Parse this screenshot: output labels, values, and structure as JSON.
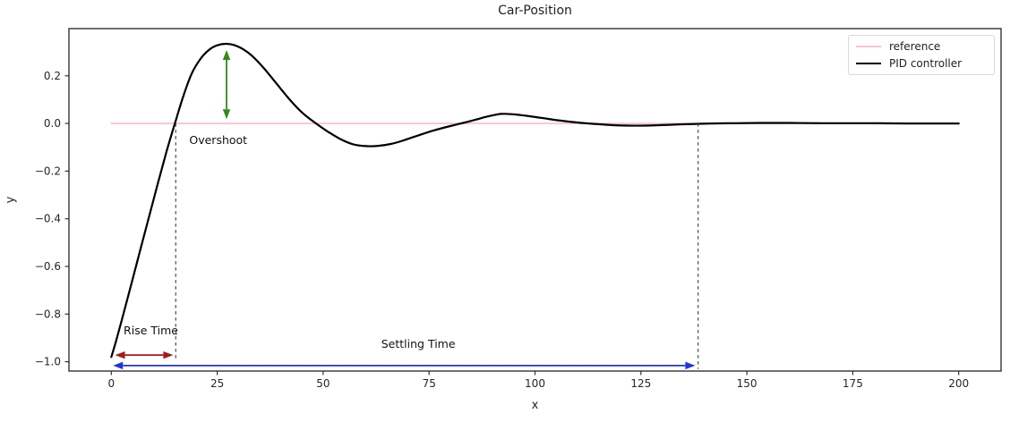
{
  "figure": {
    "title": "Car-Position",
    "xlabel": "x",
    "ylabel": "y",
    "background": "#ffffff",
    "spine_color": "#333333",
    "tick_label_color": "#262626"
  },
  "legend": {
    "position": "top-right",
    "entries": [
      {
        "label": "reference",
        "color": "#ffc0cb"
      },
      {
        "label": "PID controller",
        "color": "#000000"
      }
    ]
  },
  "chart_data": {
    "type": "line",
    "title": "Car-Position",
    "xlabel": "x",
    "ylabel": "y",
    "xlim": [
      -10,
      210
    ],
    "ylim": [
      -1.039,
      0.398
    ],
    "grid": false,
    "x_ticks": [
      0,
      25,
      50,
      75,
      100,
      125,
      150,
      175,
      200
    ],
    "x_tick_labels": [
      "0",
      "25",
      "50",
      "75",
      "100",
      "125",
      "150",
      "175",
      "200"
    ],
    "y_ticks": [
      0.2,
      0.0,
      -0.2,
      -0.4,
      -0.6,
      -0.8,
      -1.0
    ],
    "y_tick_labels": [
      "0.2",
      "0.0",
      "−0.2",
      "−0.4",
      "−0.6",
      "−0.8",
      "−1.0"
    ],
    "series": [
      {
        "name": "reference",
        "color": "#ffc0cb",
        "width": 1.8,
        "points": [
          [
            0,
            0
          ],
          [
            200,
            0
          ]
        ]
      },
      {
        "name": "PID controller",
        "color": "#000000",
        "width": 2.2,
        "points": [
          [
            0,
            -0.98
          ],
          [
            1,
            -0.92
          ],
          [
            3,
            -0.79
          ],
          [
            5,
            -0.655
          ],
          [
            7,
            -0.52
          ],
          [
            9,
            -0.385
          ],
          [
            11,
            -0.25
          ],
          [
            13,
            -0.12
          ],
          [
            15,
            0.0
          ],
          [
            17,
            0.115
          ],
          [
            19,
            0.21
          ],
          [
            21,
            0.27
          ],
          [
            23,
            0.308
          ],
          [
            25,
            0.328
          ],
          [
            27.5,
            0.334
          ],
          [
            30,
            0.322
          ],
          [
            33,
            0.287
          ],
          [
            36,
            0.232
          ],
          [
            39,
            0.167
          ],
          [
            42,
            0.102
          ],
          [
            45,
            0.046
          ],
          [
            48,
            0.004
          ],
          [
            51,
            -0.033
          ],
          [
            54,
            -0.065
          ],
          [
            57,
            -0.087
          ],
          [
            60,
            -0.095
          ],
          [
            63,
            -0.094
          ],
          [
            66,
            -0.086
          ],
          [
            69,
            -0.071
          ],
          [
            72,
            -0.053
          ],
          [
            76,
            -0.03
          ],
          [
            80,
            -0.011
          ],
          [
            83,
            0.002
          ],
          [
            86,
            0.016
          ],
          [
            89,
            0.03
          ],
          [
            92,
            0.04
          ],
          [
            95,
            0.038
          ],
          [
            98,
            0.032
          ],
          [
            102,
            0.022
          ],
          [
            106,
            0.012
          ],
          [
            110,
            0.004
          ],
          [
            114,
            -0.002
          ],
          [
            118,
            -0.007
          ],
          [
            122,
            -0.009
          ],
          [
            126,
            -0.009
          ],
          [
            130,
            -0.007
          ],
          [
            134,
            -0.004
          ],
          [
            138,
            -0.002
          ],
          [
            142,
            0.0
          ],
          [
            147,
            0.001
          ],
          [
            153,
            0.002
          ],
          [
            160,
            0.002
          ],
          [
            168,
            0.001
          ],
          [
            178,
            0.001
          ],
          [
            188,
            0.0
          ],
          [
            200,
            0.0
          ]
        ]
      }
    ],
    "key_values": {
      "rise_time_x": 15.2,
      "settling_time_x": 138.5,
      "overshoot_peak": {
        "x": 27.5,
        "y": 0.334
      },
      "undershoot_min": {
        "x": 61,
        "y": -0.095
      },
      "initial_value": -0.98,
      "reference_value": 0.0
    },
    "annotations": [
      {
        "name": "overshoot-label",
        "label": "Overshoot",
        "x": 18.4,
        "y": -0.05
      },
      {
        "name": "rise-time-label",
        "label": "Rise Time",
        "x": 2.9,
        "y": -0.85
      },
      {
        "name": "settling-time-label",
        "label": "Settling Time",
        "x": 63.7,
        "y": -0.905
      }
    ],
    "arrows": [
      {
        "name": "overshoot-arrow",
        "x1": 27.2,
        "y1": 0.308,
        "x2": 27.2,
        "y2": 0.018,
        "color": "#338a1a",
        "double": true
      },
      {
        "name": "rise-time-arrow",
        "x1": 0.9,
        "y1": -0.972,
        "x2": 14.6,
        "y2": -0.972,
        "color": "#a81a1a",
        "double": true
      },
      {
        "name": "settling-time-arrow",
        "x1": 0.4,
        "y1": -1.016,
        "x2": 137.8,
        "y2": -1.016,
        "color": "#2233dd",
        "double": true
      }
    ],
    "guide_lines": [
      {
        "name": "rise-time-guide",
        "x": 15.2,
        "y1": 0.0,
        "y2": -0.985
      },
      {
        "name": "settling-time-guide",
        "x": 138.5,
        "y1": 0.0,
        "y2": -1.03
      }
    ]
  }
}
